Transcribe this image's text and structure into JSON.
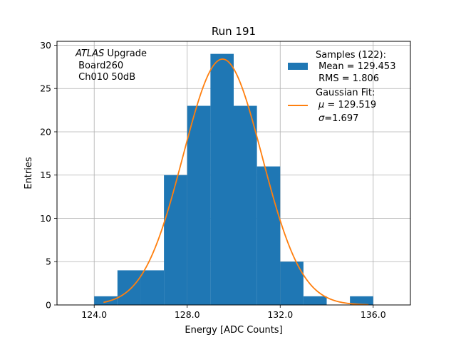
{
  "chart_data": {
    "type": "bar",
    "title": "Run 191",
    "xlabel": "Energy [ADC Counts]",
    "ylabel": "Entries",
    "xlim": [
      122.4,
      137.6
    ],
    "ylim": [
      0,
      30.45
    ],
    "x_ticks": [
      124.0,
      128.0,
      132.0,
      136.0
    ],
    "x_tick_labels": [
      "124.0",
      "128.0",
      "132.0",
      "136.0"
    ],
    "y_ticks": [
      0,
      5,
      10,
      15,
      20,
      25,
      30
    ],
    "y_tick_labels": [
      "0",
      "5",
      "10",
      "15",
      "20",
      "25",
      "30"
    ],
    "grid": true,
    "bins": [
      {
        "x0": 124,
        "x1": 125,
        "count": 1
      },
      {
        "x0": 125,
        "x1": 126,
        "count": 4
      },
      {
        "x0": 126,
        "x1": 127,
        "count": 4
      },
      {
        "x0": 127,
        "x1": 128,
        "count": 15
      },
      {
        "x0": 128,
        "x1": 129,
        "count": 23
      },
      {
        "x0": 129,
        "x1": 130,
        "count": 29
      },
      {
        "x0": 130,
        "x1": 131,
        "count": 23
      },
      {
        "x0": 131,
        "x1": 132,
        "count": 16
      },
      {
        "x0": 132,
        "x1": 133,
        "count": 5
      },
      {
        "x0": 133,
        "x1": 134,
        "count": 1
      },
      {
        "x0": 134,
        "x1": 135,
        "count": 0
      },
      {
        "x0": 135,
        "x1": 136,
        "count": 1
      }
    ],
    "fit": {
      "type": "gaussian",
      "amplitude": 28.4,
      "mu": 129.519,
      "sigma": 1.697,
      "x_range": [
        124.4,
        135.8
      ]
    },
    "series": [
      {
        "name": "Samples (122):",
        "type": "histogram",
        "color": "#1f77b4"
      },
      {
        "name": "Gaussian Fit:",
        "type": "line",
        "color": "#ff7f0e"
      }
    ],
    "legend_position": "top-right",
    "annotation": {
      "line1_italic": "ATLAS",
      "line1_rest": " Upgrade",
      "line2": " Board260",
      "line3": " Ch010 50dB"
    },
    "legend": {
      "samples_title": "Samples (122):",
      "samples_mean": " Mean = 129.453",
      "samples_rms": " RMS = 1.806",
      "fit_title": "Gaussian Fit:",
      "fit_mu_symbol": "μ",
      "fit_mu_value": " = 129.519",
      "fit_sigma_symbol": "σ",
      "fit_sigma_value": "=1.697"
    }
  }
}
